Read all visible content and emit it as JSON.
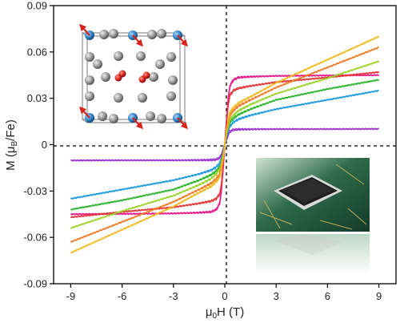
{
  "chart_data": {
    "type": "line",
    "title": "",
    "xlabel_parts": [
      "μ",
      "0",
      "H (T)"
    ],
    "ylabel_parts": [
      "M (μ",
      "B",
      "/Fe)"
    ],
    "xlim": [
      -10,
      10
    ],
    "ylim": [
      -0.09,
      0.09
    ],
    "xticks": [
      -9,
      -6,
      -3,
      0,
      3,
      6,
      9
    ],
    "yticks": [
      -0.09,
      -0.06,
      -0.03,
      0,
      0.03,
      0.06,
      0.09
    ],
    "x_tick_labels": [
      "-9",
      "-6",
      "-3",
      "0",
      "3",
      "6",
      "9"
    ],
    "y_tick_labels": [
      "-0.09",
      "-0.06",
      "-0.03",
      "0",
      "0.03",
      "0.06",
      "0.09"
    ],
    "grid": false,
    "zero_lines": "dashed",
    "series": [
      {
        "color": "#9b30d0",
        "x": [
          0,
          0.1,
          0.2,
          0.3,
          0.5,
          0.8,
          1.5,
          3,
          6,
          9
        ],
        "y": [
          0,
          0.0035,
          0.0065,
          0.0085,
          0.0096,
          0.0099,
          0.01,
          0.0101,
          0.0101,
          0.0102
        ]
      },
      {
        "color": "#e8198b",
        "x": [
          0,
          0.1,
          0.2,
          0.3,
          0.5,
          0.8,
          1.5,
          3,
          6,
          9
        ],
        "y": [
          0,
          0.016,
          0.03,
          0.038,
          0.042,
          0.0435,
          0.044,
          0.0445,
          0.0448,
          0.045
        ]
      },
      {
        "color": "#e43838",
        "x": [
          0,
          0.1,
          0.2,
          0.3,
          0.5,
          0.8,
          1.5,
          3,
          6,
          9
        ],
        "y": [
          0,
          0.014,
          0.026,
          0.032,
          0.035,
          0.0365,
          0.038,
          0.0405,
          0.0435,
          0.047
        ]
      },
      {
        "color": "#1e9be0",
        "x": [
          0,
          0.1,
          0.2,
          0.3,
          0.5,
          0.8,
          1.5,
          3,
          6,
          9
        ],
        "y": [
          0,
          0.005,
          0.009,
          0.012,
          0.0145,
          0.0165,
          0.019,
          0.023,
          0.029,
          0.035
        ]
      },
      {
        "color": "#2ab52a",
        "x": [
          0,
          0.1,
          0.2,
          0.3,
          0.5,
          0.8,
          1.5,
          3,
          6,
          9
        ],
        "y": [
          0,
          0.006,
          0.011,
          0.0145,
          0.017,
          0.0195,
          0.023,
          0.029,
          0.036,
          0.042
        ]
      },
      {
        "color": "#9bd42a",
        "x": [
          0,
          0.1,
          0.2,
          0.3,
          0.5,
          0.8,
          1.5,
          3,
          6,
          9
        ],
        "y": [
          0,
          0.007,
          0.012,
          0.016,
          0.019,
          0.022,
          0.026,
          0.033,
          0.043,
          0.054
        ]
      },
      {
        "color": "#f07a24",
        "x": [
          0,
          0.1,
          0.2,
          0.3,
          0.5,
          0.8,
          1.5,
          3,
          6,
          9
        ],
        "y": [
          0,
          0.008,
          0.014,
          0.019,
          0.022,
          0.025,
          0.029,
          0.037,
          0.05,
          0.063
        ]
      },
      {
        "color": "#f2b81d",
        "x": [
          0,
          0.1,
          0.2,
          0.3,
          0.5,
          0.8,
          1.5,
          3,
          6,
          9
        ],
        "y": [
          0,
          0.009,
          0.016,
          0.021,
          0.024,
          0.027,
          0.031,
          0.04,
          0.055,
          0.07
        ]
      }
    ],
    "insets": [
      {
        "name": "crystal-structure",
        "location": "top-left",
        "atom_colors": {
          "iron": "#2f86c9",
          "oxygen": "#d8231c",
          "other": "#9a9a9a",
          "spin_arrow": "#d8231c"
        }
      },
      {
        "name": "microchip-photo",
        "location": "bottom-right",
        "colors": {
          "board": "#1f4a3a",
          "chip": "#222222",
          "pins": "#d9d9d9"
        }
      }
    ]
  }
}
